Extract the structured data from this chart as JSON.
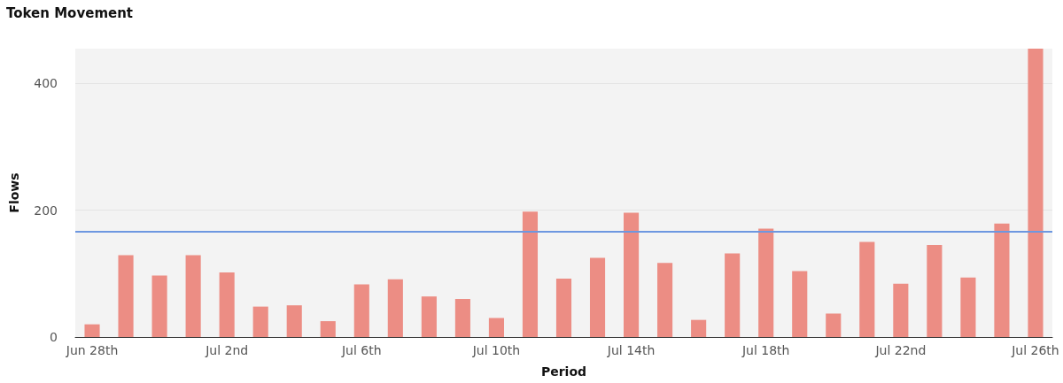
{
  "chart_data": {
    "type": "bar",
    "title": "Token Movement",
    "xlabel": "Period",
    "ylabel": "Flows",
    "categories": [
      "Jun 28th",
      null,
      null,
      null,
      "Jul 2nd",
      null,
      null,
      null,
      "Jul 6th",
      null,
      null,
      null,
      "Jul 10th",
      null,
      null,
      null,
      "Jul 14th",
      null,
      null,
      null,
      "Jul 18th",
      null,
      null,
      null,
      "Jul 22nd",
      null,
      null,
      null,
      "Jul 26th"
    ],
    "values": [
      20,
      129,
      97,
      129,
      102,
      48,
      50,
      25,
      83,
      91,
      64,
      60,
      30,
      198,
      92,
      125,
      196,
      117,
      27,
      132,
      171,
      104,
      37,
      150,
      84,
      145,
      94,
      179,
      455
    ],
    "color": "#ec8d84",
    "ylim": [
      0,
      455
    ],
    "yticks": [
      0,
      200,
      400
    ],
    "grid": "y",
    "ref_lines": [
      {
        "axis": "y",
        "value": 166,
        "color": "#6d97e0"
      }
    ]
  }
}
